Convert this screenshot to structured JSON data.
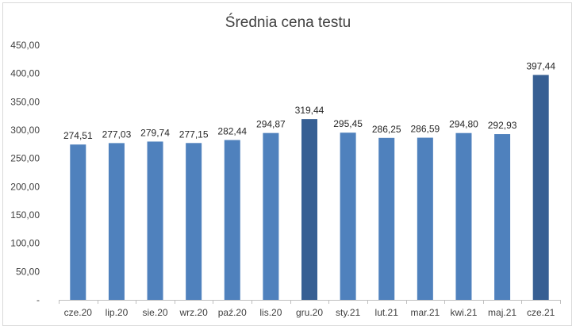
{
  "chart_data": {
    "type": "bar",
    "title": "Średnia cena testu",
    "categories": [
      "cze.20",
      "lip.20",
      "sie.20",
      "wrz.20",
      "paź.20",
      "lis.20",
      "gru.20",
      "sty.21",
      "lut.21",
      "mar.21",
      "kwi.21",
      "maj.21",
      "cze.21"
    ],
    "values": [
      274.51,
      277.03,
      279.74,
      277.15,
      282.44,
      294.87,
      319.44,
      295.45,
      286.25,
      286.59,
      294.8,
      292.93,
      397.44
    ],
    "value_labels": [
      "274,51",
      "277,03",
      "279,74",
      "277,15",
      "282,44",
      "294,87",
      "319,44",
      "295,45",
      "286,25",
      "286,59",
      "294,80",
      "292,93",
      "397,44"
    ],
    "y_ticks": [
      "-",
      "50,00",
      "100,00",
      "150,00",
      "200,00",
      "250,00",
      "300,00",
      "350,00",
      "400,00",
      "450,00"
    ],
    "ylim": [
      0,
      450
    ],
    "y_step": 50,
    "grid": false,
    "legend": "none",
    "bar_colors": [
      "#4f81bd",
      "#4f81bd",
      "#4f81bd",
      "#4f81bd",
      "#4f81bd",
      "#4f81bd",
      "#375f93",
      "#4f81bd",
      "#4f81bd",
      "#4f81bd",
      "#4f81bd",
      "#4f81bd",
      "#375f93"
    ]
  }
}
